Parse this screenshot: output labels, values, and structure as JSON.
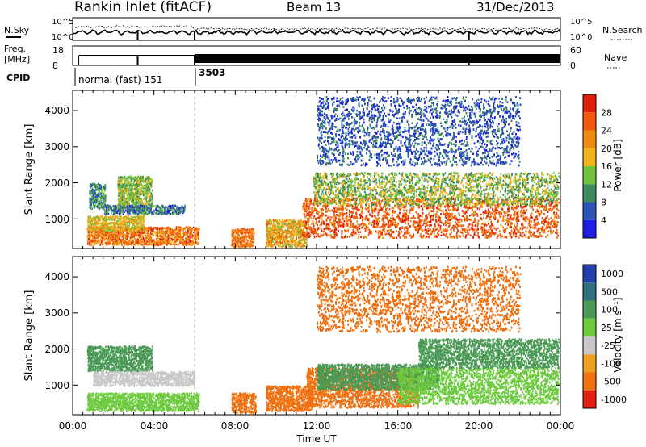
{
  "header": {
    "site": "Rankin Inlet (fitACF)",
    "beam": "Beam 13",
    "date": "31/Dec/2013"
  },
  "noise_panel": {
    "left_label": "N.Sky",
    "right_label": "N.Search",
    "left_ticks": [
      "10^5",
      "10^0"
    ],
    "right_ticks": [
      "10^5",
      "10^0"
    ]
  },
  "freq_panel": {
    "left_label_1": "Freq.",
    "left_label_2": "[MHz]",
    "right_label": "Nave",
    "left_ticks": [
      "18",
      "8"
    ],
    "right_ticks": [
      "60",
      "0"
    ]
  },
  "cpid": {
    "label": "CPID",
    "modes": [
      {
        "name": "normal (fast) 151",
        "start_hour": 0.0,
        "end_hour": 6.0
      },
      {
        "name": "3503",
        "start_hour": 6.0,
        "end_hour": 24.0
      }
    ]
  },
  "axes": {
    "xlabel": "Time UT",
    "x_tick_labels": [
      "00:00",
      "04:00",
      "08:00",
      "12:00",
      "16:00",
      "20:00",
      "00:00"
    ],
    "ylabel": "Slant Range [km]",
    "y_tick_labels": [
      "1000",
      "2000",
      "3000",
      "4000"
    ]
  },
  "colorbars": {
    "power": {
      "label": "Power [dB]",
      "tick_labels": [
        "4",
        "8",
        "12",
        "16",
        "20",
        "24",
        "28"
      ],
      "colors": [
        "#1f1fe6",
        "#2b55b5",
        "#3d8a5c",
        "#6fc23a",
        "#f2b41a",
        "#f28a10",
        "#f05a0a",
        "#e01e0a"
      ]
    },
    "velocity": {
      "label": "Velocity [m s⁻¹]",
      "tick_labels": [
        "1000",
        "500",
        "100",
        "25",
        "-25",
        "-100",
        "-500",
        "-1000"
      ],
      "colors": [
        "#2040b0",
        "#2f6f80",
        "#4a9a55",
        "#6ccb3c",
        "#c8c8c8",
        "#f0a020",
        "#f07010",
        "#e02010"
      ]
    }
  },
  "chart_data": [
    {
      "type": "heatmap",
      "title": "Power",
      "x_range_hours": [
        0,
        24
      ],
      "y_range_km": [
        180,
        4560
      ],
      "colorbar_range_db": [
        0,
        32
      ],
      "blobs": [
        {
          "t0": 0.7,
          "t1": 6.2,
          "r0": 300,
          "r1": 800,
          "value": 24
        },
        {
          "t0": 0.7,
          "t1": 3.5,
          "r0": 700,
          "r1": 1100,
          "value": 18
        },
        {
          "t0": 0.8,
          "t1": 1.6,
          "r0": 1300,
          "r1": 2000,
          "value": 10
        },
        {
          "t0": 2.2,
          "t1": 3.9,
          "r0": 1300,
          "r1": 2200,
          "value": 14
        },
        {
          "t0": 1.5,
          "t1": 5.5,
          "r0": 1150,
          "r1": 1400,
          "value": 8
        },
        {
          "t0": 7.8,
          "t1": 8.9,
          "r0": 250,
          "r1": 750,
          "value": 24
        },
        {
          "t0": 9.5,
          "t1": 11.5,
          "r0": 250,
          "r1": 1000,
          "value": 20
        },
        {
          "t0": 11.3,
          "t1": 23.9,
          "r0": 500,
          "r1": 1600,
          "value": 26
        },
        {
          "t0": 11.8,
          "t1": 23.9,
          "r0": 1400,
          "r1": 2300,
          "value": 14
        },
        {
          "t0": 12.0,
          "t1": 22.0,
          "r0": 2500,
          "r1": 4400,
          "value": 6
        }
      ]
    },
    {
      "type": "heatmap",
      "title": "Velocity",
      "x_range_hours": [
        0,
        24
      ],
      "y_range_km": [
        180,
        4560
      ],
      "colorbar_range_ms": [
        -1000,
        1000
      ],
      "blobs": [
        {
          "t0": 0.7,
          "t1": 6.2,
          "r0": 300,
          "r1": 800,
          "value": 60
        },
        {
          "t0": 0.7,
          "t1": 3.9,
          "r0": 1400,
          "r1": 2100,
          "value": 120
        },
        {
          "t0": 1.0,
          "t1": 6.0,
          "r0": 1000,
          "r1": 1400,
          "value": 0
        },
        {
          "t0": 7.8,
          "t1": 9.0,
          "r0": 250,
          "r1": 800,
          "value": -150
        },
        {
          "t0": 9.5,
          "t1": 11.8,
          "r0": 300,
          "r1": 1000,
          "value": -200
        },
        {
          "t0": 11.5,
          "t1": 17.0,
          "r0": 400,
          "r1": 1500,
          "value": -250
        },
        {
          "t0": 12.0,
          "t1": 18.0,
          "r0": 900,
          "r1": 1600,
          "value": 300
        },
        {
          "t0": 16.0,
          "t1": 23.9,
          "r0": 500,
          "r1": 1500,
          "value": 80
        },
        {
          "t0": 17.0,
          "t1": 23.9,
          "r0": 1500,
          "r1": 2300,
          "value": 150
        },
        {
          "t0": 12.0,
          "t1": 22.0,
          "r0": 2500,
          "r1": 4300,
          "value": -120
        }
      ]
    }
  ]
}
